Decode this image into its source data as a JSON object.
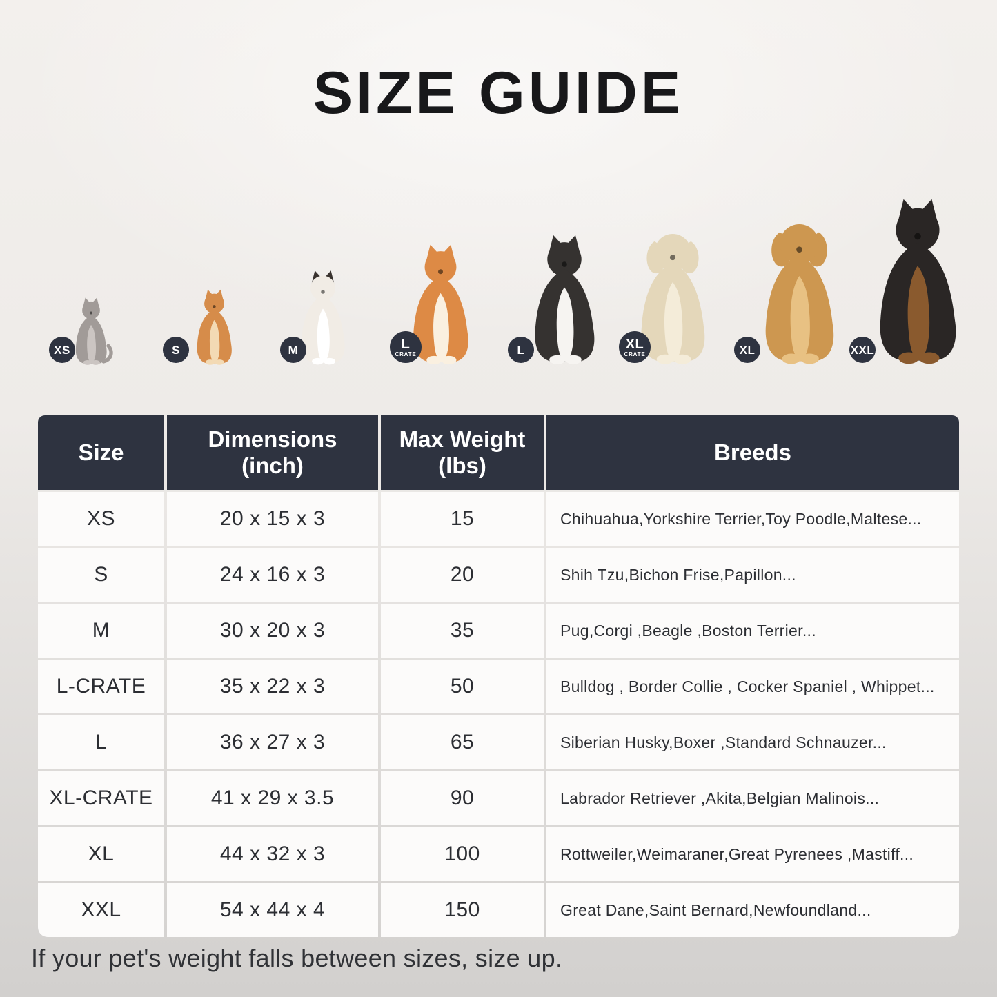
{
  "title": "SIZE GUIDE",
  "footnote": "If your pet's weight falls between sizes, size up.",
  "colors": {
    "header_bg": "#2e3340",
    "header_text": "#ffffff",
    "badge_bg": "#2e3340",
    "cell_bg": "#fcfbfa",
    "text": "#2c2e33",
    "page_top": "#f3f0ed",
    "page_bottom": "#d2d0ce"
  },
  "pets": [
    {
      "icon": "cat-image",
      "badge": {
        "label": "XS",
        "sub": ""
      },
      "colors": {
        "main": "#a19b98",
        "chest": "#cbc5c2"
      },
      "ear_type": "point",
      "cat": true
    },
    {
      "icon": "pomeranian-image",
      "badge": {
        "label": "S",
        "sub": ""
      },
      "colors": {
        "main": "#d68c4a",
        "chest": "#f3dab4"
      },
      "ear_type": "point"
    },
    {
      "icon": "french-bulldog-image",
      "badge": {
        "label": "M",
        "sub": ""
      },
      "colors": {
        "main": "#f1ece5",
        "chest": "#ffffff",
        "ear": "#39332f"
      },
      "ear_type": "point"
    },
    {
      "icon": "shiba-inu-image",
      "badge": {
        "label": "L",
        "sub": "CRATE"
      },
      "colors": {
        "main": "#dd8a45",
        "chest": "#faf0e0"
      },
      "ear_type": "point"
    },
    {
      "icon": "border-collie-image",
      "badge": {
        "label": "L",
        "sub": ""
      },
      "colors": {
        "main": "#353230",
        "chest": "#f6f4f1"
      },
      "ear_type": "point"
    },
    {
      "icon": "labrador-image",
      "badge": {
        "label": "XL",
        "sub": "CRATE"
      },
      "colors": {
        "main": "#e4d7ba",
        "chest": "#f4ecd9"
      },
      "ear_type": "floppy"
    },
    {
      "icon": "golden-retriever-image",
      "badge": {
        "label": "XL",
        "sub": ""
      },
      "colors": {
        "main": "#cd9750",
        "chest": "#e8c183"
      },
      "ear_type": "floppy"
    },
    {
      "icon": "doberman-image",
      "badge": {
        "label": "XXL",
        "sub": ""
      },
      "colors": {
        "main": "#2a2625",
        "chest": "#8a5a2e"
      },
      "ear_type": "point"
    }
  ],
  "table": {
    "headers": [
      {
        "label": "Size",
        "sub": ""
      },
      {
        "label": "Dimensions",
        "sub": "(inch)"
      },
      {
        "label": "Max Weight",
        "sub": "(lbs)"
      },
      {
        "label": "Breeds",
        "sub": ""
      }
    ],
    "rows": [
      {
        "size": "XS",
        "dimensions": "20 x 15 x 3",
        "max_weight": "15",
        "breeds": "Chihuahua,Yorkshire Terrier,Toy Poodle,Maltese..."
      },
      {
        "size": "S",
        "dimensions": "24 x 16 x 3",
        "max_weight": "20",
        "breeds": "Shih Tzu,Bichon Frise,Papillon..."
      },
      {
        "size": "M",
        "dimensions": "30 x 20 x 3",
        "max_weight": "35",
        "breeds": "Pug,Corgi ,Beagle ,Boston Terrier..."
      },
      {
        "size": "L-CRATE",
        "dimensions": "35 x 22 x 3",
        "max_weight": "50",
        "breeds": "Bulldog , Border Collie , Cocker Spaniel , Whippet..."
      },
      {
        "size": "L",
        "dimensions": "36 x 27 x 3",
        "max_weight": "65",
        "breeds": "Siberian Husky,Boxer ,Standard Schnauzer..."
      },
      {
        "size": "XL-CRATE",
        "dimensions": "41 x 29 x 3.5",
        "max_weight": "90",
        "breeds": "Labrador Retriever ,Akita,Belgian Malinois..."
      },
      {
        "size": "XL",
        "dimensions": "44 x 32 x 3",
        "max_weight": "100",
        "breeds": "Rottweiler,Weimaraner,Great Pyrenees ,Mastiff..."
      },
      {
        "size": "XXL",
        "dimensions": "54 x 44 x 4",
        "max_weight": "150",
        "breeds": "Great Dane,Saint Bernard,Newfoundland..."
      }
    ]
  }
}
